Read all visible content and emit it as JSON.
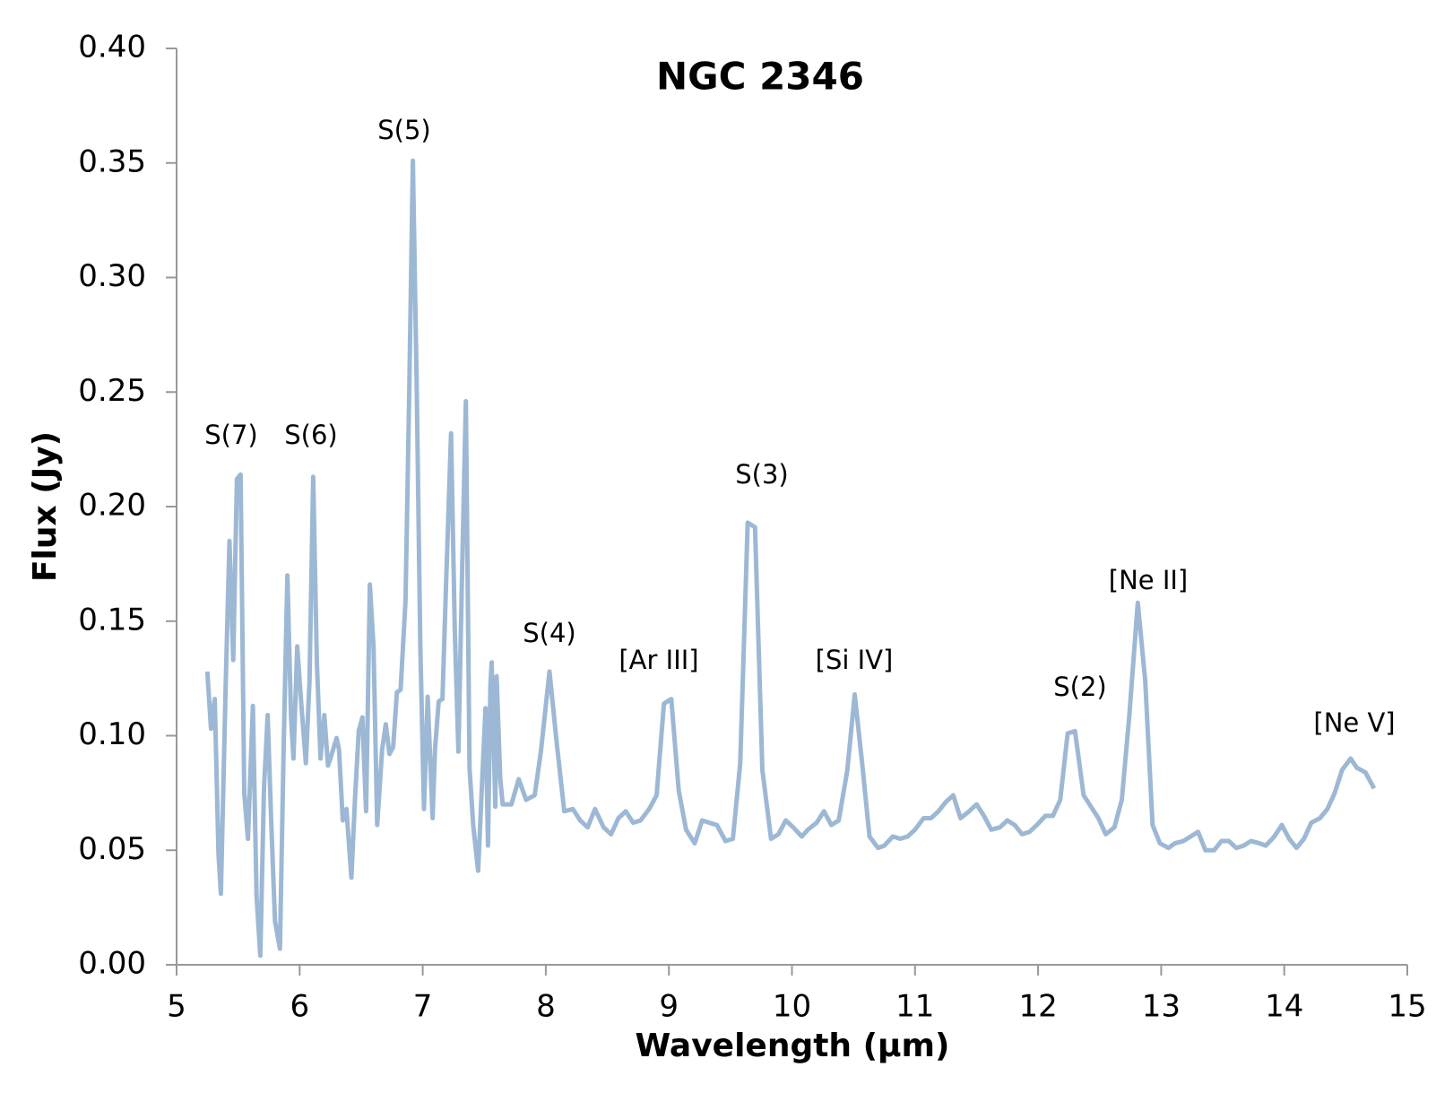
{
  "chart_data": {
    "type": "line",
    "title": "NGC 2346",
    "xlabel": "Wavelength (μm)",
    "ylabel": "Flux (Jy)",
    "color": "#9db8d4",
    "xlim": [
      5,
      15
    ],
    "xticks": [
      5,
      6,
      7,
      8,
      9,
      10,
      11,
      12,
      13,
      14,
      15
    ],
    "ylim": [
      0,
      0.4
    ],
    "yticks": [
      {
        "value": 0,
        "label": "0.00"
      },
      {
        "value": 0.05,
        "label": "0.05"
      },
      {
        "value": 0.1,
        "label": "0.10"
      },
      {
        "value": 0.15,
        "label": "0.15"
      },
      {
        "value": 0.2,
        "label": "0.20"
      },
      {
        "value": 0.25,
        "label": "0.25"
      },
      {
        "value": 0.3,
        "label": "0.30"
      },
      {
        "value": 0.35,
        "label": "0.35"
      },
      {
        "value": 0.4,
        "label": "0.40"
      }
    ],
    "annotations": [
      "S(7)",
      "S(6)",
      "S(5)",
      "S(4)",
      "[Ar III]",
      "S(3)",
      "[Si IV]",
      "S(2)",
      "[Ne II]",
      "[Ne V]"
    ],
    "x": [
      5.25,
      5.28,
      5.31,
      5.34,
      5.36,
      5.4,
      5.43,
      5.46,
      5.49,
      5.52,
      5.55,
      5.58,
      5.62,
      5.65,
      5.68,
      5.71,
      5.74,
      5.77,
      5.8,
      5.84,
      5.87,
      5.9,
      5.93,
      5.95,
      5.98,
      6.01,
      6.05,
      6.08,
      6.11,
      6.14,
      6.17,
      6.2,
      6.23,
      6.25,
      6.3,
      6.32,
      6.35,
      6.38,
      6.42,
      6.45,
      6.48,
      6.51,
      6.54,
      6.57,
      6.6,
      6.63,
      6.67,
      6.7,
      6.73,
      6.76,
      6.79,
      6.82,
      6.86,
      6.89,
      6.92,
      6.95,
      6.98,
      7.01,
      7.04,
      7.08,
      7.1,
      7.13,
      7.16,
      7.19,
      7.23,
      7.26,
      7.29,
      7.32,
      7.35,
      7.38,
      7.41,
      7.45,
      7.48,
      7.51,
      7.53,
      7.55,
      7.56,
      7.59,
      7.6,
      7.63,
      7.65,
      7.72,
      7.78,
      7.84,
      7.91,
      7.96,
      8.03,
      8.09,
      8.15,
      8.22,
      8.28,
      8.34,
      8.4,
      8.47,
      8.53,
      8.59,
      8.65,
      8.71,
      8.77,
      8.84,
      8.9,
      8.96,
      9.02,
      9.08,
      9.14,
      9.21,
      9.27,
      9.33,
      9.39,
      9.46,
      9.52,
      9.58,
      9.64,
      9.7,
      9.76,
      9.83,
      9.89,
      9.95,
      10.01,
      10.08,
      10.13,
      10.2,
      10.26,
      10.32,
      10.38,
      10.45,
      10.51,
      10.57,
      10.63,
      10.7,
      10.75,
      10.82,
      10.88,
      10.94,
      11.0,
      11.07,
      11.13,
      11.19,
      11.25,
      11.31,
      11.37,
      11.44,
      11.5,
      11.56,
      11.62,
      11.69,
      11.75,
      11.81,
      11.87,
      11.93,
      11.99,
      12.06,
      12.12,
      12.18,
      12.24,
      12.3,
      12.37,
      12.43,
      12.49,
      12.55,
      12.62,
      12.68,
      12.74,
      12.81,
      12.87,
      12.93,
      12.99,
      13.06,
      13.11,
      13.18,
      13.24,
      13.3,
      13.36,
      13.43,
      13.49,
      13.55,
      13.61,
      13.67,
      13.73,
      13.8,
      13.85,
      13.92,
      13.98,
      14.04,
      14.1,
      14.16,
      14.22,
      14.29,
      14.35,
      14.41,
      14.47,
      14.54,
      14.59,
      14.66,
      14.73
    ],
    "values": [
      0.128,
      0.103,
      0.116,
      0.049,
      0.031,
      0.124,
      0.185,
      0.133,
      0.212,
      0.214,
      0.075,
      0.055,
      0.113,
      0.03,
      0.004,
      0.077,
      0.109,
      0.061,
      0.019,
      0.007,
      0.096,
      0.17,
      0.108,
      0.09,
      0.139,
      0.116,
      0.088,
      0.124,
      0.213,
      0.132,
      0.09,
      0.109,
      0.087,
      0.09,
      0.099,
      0.094,
      0.063,
      0.068,
      0.038,
      0.073,
      0.102,
      0.108,
      0.067,
      0.166,
      0.139,
      0.061,
      0.094,
      0.105,
      0.092,
      0.095,
      0.119,
      0.12,
      0.159,
      0.249,
      0.351,
      0.257,
      0.139,
      0.068,
      0.117,
      0.064,
      0.094,
      0.115,
      0.116,
      0.167,
      0.232,
      0.147,
      0.093,
      0.171,
      0.246,
      0.086,
      0.061,
      0.041,
      0.077,
      0.112,
      0.052,
      0.122,
      0.132,
      0.069,
      0.126,
      0.081,
      0.07,
      0.07,
      0.081,
      0.072,
      0.074,
      0.093,
      0.128,
      0.096,
      0.067,
      0.068,
      0.063,
      0.06,
      0.068,
      0.06,
      0.057,
      0.064,
      0.067,
      0.062,
      0.063,
      0.068,
      0.074,
      0.114,
      0.116,
      0.076,
      0.059,
      0.053,
      0.063,
      0.062,
      0.061,
      0.054,
      0.055,
      0.088,
      0.193,
      0.191,
      0.085,
      0.055,
      0.057,
      0.063,
      0.06,
      0.056,
      0.059,
      0.062,
      0.067,
      0.061,
      0.063,
      0.085,
      0.118,
      0.088,
      0.056,
      0.051,
      0.052,
      0.056,
      0.055,
      0.056,
      0.059,
      0.064,
      0.064,
      0.067,
      0.071,
      0.074,
      0.064,
      0.067,
      0.07,
      0.065,
      0.059,
      0.06,
      0.063,
      0.061,
      0.057,
      0.058,
      0.061,
      0.065,
      0.065,
      0.072,
      0.101,
      0.102,
      0.074,
      0.069,
      0.064,
      0.057,
      0.06,
      0.072,
      0.108,
      0.158,
      0.124,
      0.061,
      0.053,
      0.051,
      0.053,
      0.054,
      0.056,
      0.058,
      0.05,
      0.05,
      0.054,
      0.054,
      0.051,
      0.052,
      0.054,
      0.053,
      0.052,
      0.056,
      0.061,
      0.055,
      0.051,
      0.055,
      0.062,
      0.064,
      0.068,
      0.075,
      0.085,
      0.09,
      0.086,
      0.084,
      0.077
    ]
  }
}
